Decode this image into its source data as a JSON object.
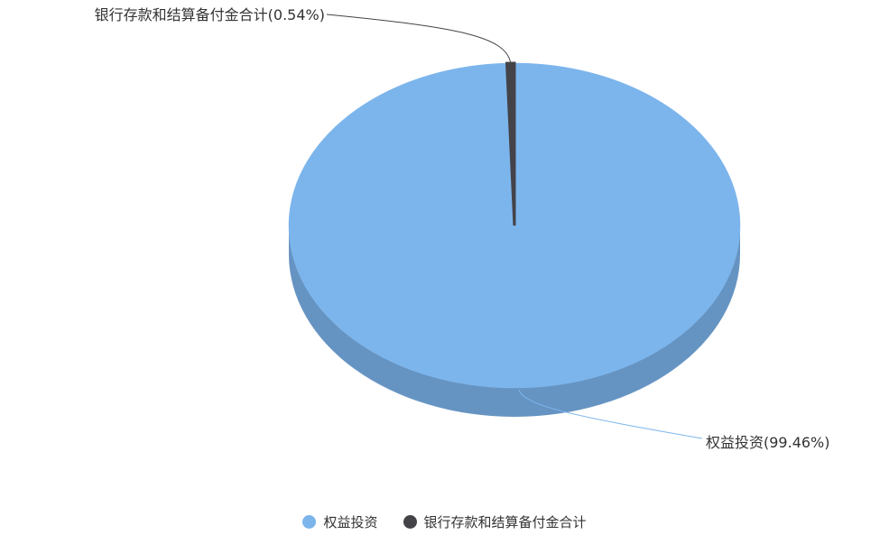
{
  "chart_data": {
    "type": "pie",
    "title": "",
    "series": [
      {
        "name": "权益投资",
        "value": 99.46,
        "label": "权益投资(99.46%)",
        "color": "#7cb5ec"
      },
      {
        "name": "银行存款和结算备付金合计",
        "value": 0.54,
        "label": "银行存款和结算备付金合计(0.54%)",
        "color": "#434348"
      }
    ],
    "legend_position": "bottom"
  }
}
